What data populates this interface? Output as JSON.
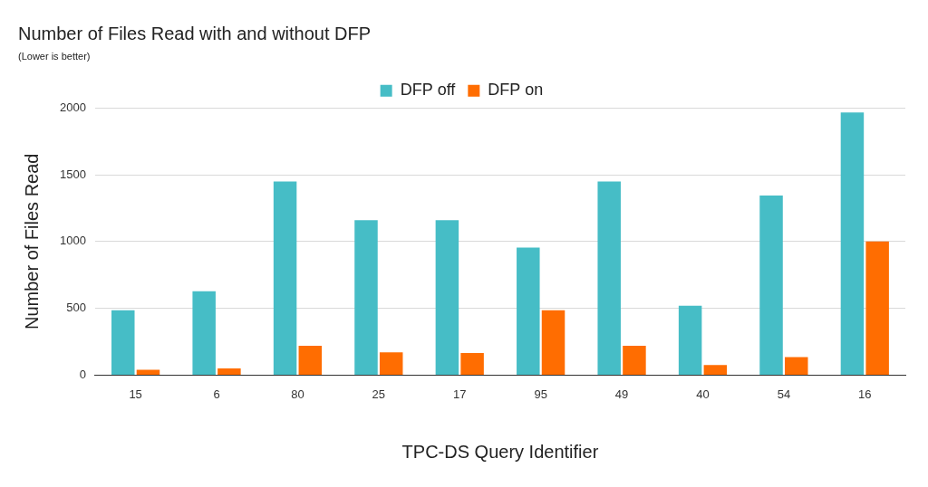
{
  "chart_data": {
    "type": "bar",
    "title": "Number of Files Read with and without DFP",
    "subtitle": "(Lower is better)",
    "x_label": "TPC-DS Query Identifier",
    "y_label": "Number of Files Read",
    "categories": [
      "15",
      "6",
      "80",
      "25",
      "17",
      "95",
      "49",
      "40",
      "54",
      "16"
    ],
    "series": [
      {
        "name": "DFP off",
        "color": "#46bdc6",
        "values": [
          485,
          628,
          1450,
          1160,
          1160,
          955,
          1450,
          519,
          1345,
          1966
        ]
      },
      {
        "name": "DFP on",
        "color": "#ff6d01",
        "values": [
          40,
          50,
          220,
          170,
          165,
          485,
          220,
          75,
          135,
          1000
        ]
      }
    ],
    "ylim": [
      0,
      2000
    ],
    "yticks": [
      0,
      500,
      1000,
      1500,
      2000
    ],
    "grid": true,
    "legend": "top"
  }
}
